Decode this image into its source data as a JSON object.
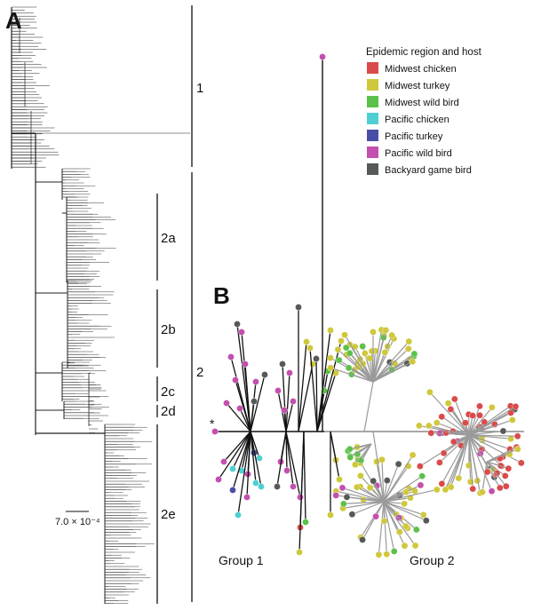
{
  "panel_a": {
    "letter": "A",
    "clades": [
      {
        "label": "1"
      },
      {
        "label": "2"
      },
      {
        "label": "2a"
      },
      {
        "label": "2b"
      },
      {
        "label": "2c"
      },
      {
        "label": "2d"
      },
      {
        "label": "2e"
      }
    ],
    "scale_label": "7.0 × 10⁻⁴"
  },
  "panel_b": {
    "letter": "B",
    "root_marker": "*",
    "group_labels": [
      "Group 1",
      "Group 2"
    ]
  },
  "legend": {
    "title": "Epidemic region and host",
    "items": [
      {
        "label": "Midwest chicken",
        "color": "#d94b4b"
      },
      {
        "label": "Midwest turkey",
        "color": "#cfc83c"
      },
      {
        "label": "Midwest wild bird",
        "color": "#5cc14a"
      },
      {
        "label": "Pacific chicken",
        "color": "#4fcfd3"
      },
      {
        "label": "Pacific turkey",
        "color": "#4a4fa6"
      },
      {
        "label": "Pacific wild bird",
        "color": "#c34fae"
      },
      {
        "label": "Backyard game bird",
        "color": "#555a57"
      }
    ]
  }
}
